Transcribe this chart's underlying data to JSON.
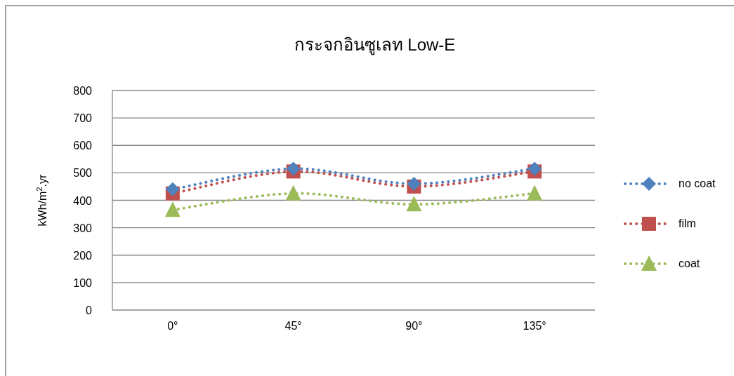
{
  "chart_data": {
    "type": "line",
    "title": "กระจกอินซูเลท Low-E",
    "ylabel": "kWh/m$^{2}$.yr",
    "categories": [
      "0°",
      "45°",
      "90°",
      "135°"
    ],
    "series": [
      {
        "name": "no coat",
        "color": "#4f81bd",
        "marker": "diamond",
        "values": [
          440,
          515,
          460,
          515
        ]
      },
      {
        "name": "film",
        "color": "#c0504d",
        "marker": "square",
        "values": [
          425,
          505,
          450,
          505
        ]
      },
      {
        "name": "coat",
        "color": "#9bbb59",
        "marker": "triangle",
        "values": [
          365,
          425,
          385,
          425
        ]
      }
    ],
    "line_style": "dotted",
    "ylim": [
      0,
      800
    ],
    "yticks": [
      0,
      100,
      200,
      300,
      400,
      500,
      600,
      700,
      800
    ],
    "grid": "y",
    "legend": "right"
  }
}
